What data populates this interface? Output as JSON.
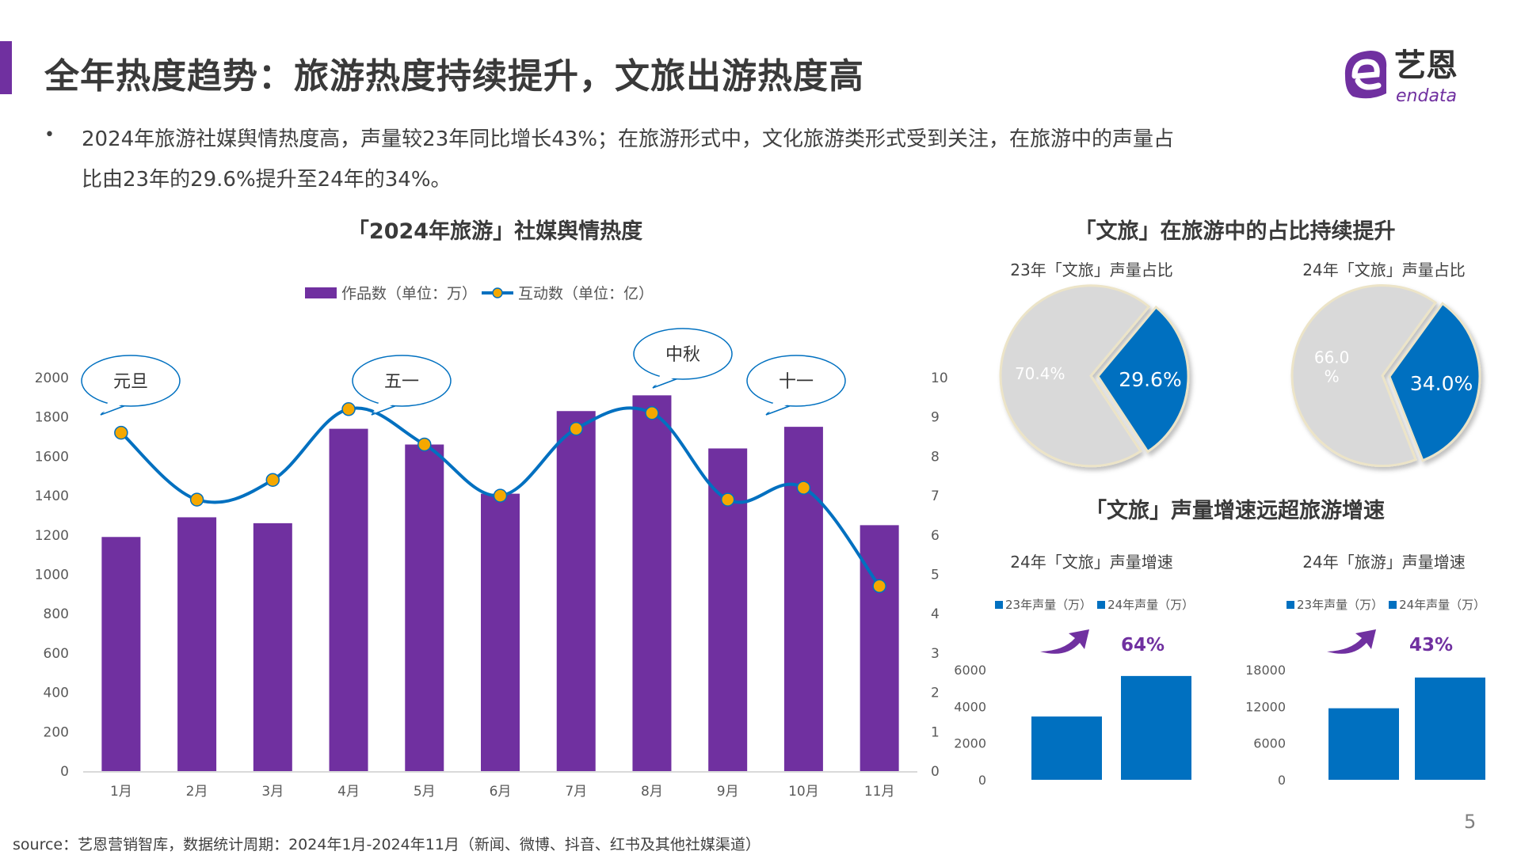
{
  "header": {
    "title": "全年热度趋势：旅游热度持续提升，文旅出游热度高",
    "logo_cn": "艺恩",
    "logo_en": "endata"
  },
  "bullet": {
    "line1": "2024年旅游社媒舆情热度高，声量较23年同比增长43%；在旅游形式中，文化旅游类形式受到关注，在旅游中的声量占",
    "line2": "比由23年的29.6%提升至24年的34%。"
  },
  "colors": {
    "accent": "#7030a0",
    "bar": "#7030a0",
    "line": "#0070c0",
    "marker": "#f5a800",
    "blue": "#0070c0",
    "gray": "#d9d9d9"
  },
  "chart_data": [
    {
      "type": "bar+line",
      "title": "「2024年旅游」社媒舆情热度",
      "categories": [
        "1月",
        "2月",
        "3月",
        "4月",
        "5月",
        "6月",
        "7月",
        "8月",
        "9月",
        "10月",
        "11月"
      ],
      "series": [
        {
          "name": "作品数（单位：万）",
          "type": "bar",
          "axis": "left",
          "values": [
            1190,
            1290,
            1260,
            1740,
            1660,
            1410,
            1830,
            1910,
            1640,
            1750,
            1250
          ]
        },
        {
          "name": "互动数（单位：亿）",
          "type": "line",
          "axis": "right",
          "values": [
            8.6,
            6.9,
            7.4,
            9.2,
            8.3,
            7.0,
            8.7,
            9.1,
            6.9,
            7.2,
            4.7
          ]
        }
      ],
      "ylim_left": [
        0,
        2000
      ],
      "yticks_left": [
        "0",
        "200",
        "400",
        "600",
        "800",
        "1000",
        "1200",
        "1400",
        "1600",
        "1800",
        "2000"
      ],
      "ylim_right": [
        0,
        10
      ],
      "yticks_right": [
        "0",
        "1",
        "2",
        "3",
        "4",
        "5",
        "6",
        "7",
        "8",
        "9",
        "10"
      ],
      "annotations": [
        {
          "text": "元旦",
          "category": "1月"
        },
        {
          "text": "五一",
          "category": "5月"
        },
        {
          "text": "中秋",
          "category": "8月"
        },
        {
          "text": "十一",
          "category": "10月"
        }
      ],
      "legend": "top",
      "grid": false
    },
    {
      "type": "pie",
      "title": "23年「文旅」声量占比",
      "values": [
        29.6,
        70.4
      ],
      "labels": [
        "29.6%",
        "70.4%"
      ]
    },
    {
      "type": "pie",
      "title": "24年「文旅」声量占比",
      "values": [
        34.0,
        66.0
      ],
      "labels": [
        "34.0%",
        "66.0\n%"
      ]
    },
    {
      "type": "bar",
      "title": "24年「文旅」声量增速",
      "categories": [
        "23年声量（万）",
        "24年声量（万）"
      ],
      "values": [
        3450,
        5660
      ],
      "ylim": [
        0,
        6000
      ],
      "yticks": [
        "0",
        "2000",
        "4000",
        "6000"
      ],
      "growth_label": "64%",
      "legend": "top"
    },
    {
      "type": "bar",
      "title": "24年「旅游」声量增速",
      "categories": [
        "23年声量（万）",
        "24年声量（万）"
      ],
      "values": [
        11700,
        16730
      ],
      "ylim": [
        0,
        18000
      ],
      "yticks": [
        "0",
        "6000",
        "12000",
        "18000"
      ],
      "growth_label": "43%",
      "legend": "top"
    }
  ],
  "sections": {
    "share_title": "「文旅」在旅游中的占比持续提升",
    "growth_title": "「文旅」声量增速远超旅游增速"
  },
  "footer": {
    "source": "source：艺恩营销智库，数据统计周期：2024年1月-2024年11月（新闻、微博、抖音、红书及其他社媒渠道）",
    "page_number": "5"
  }
}
